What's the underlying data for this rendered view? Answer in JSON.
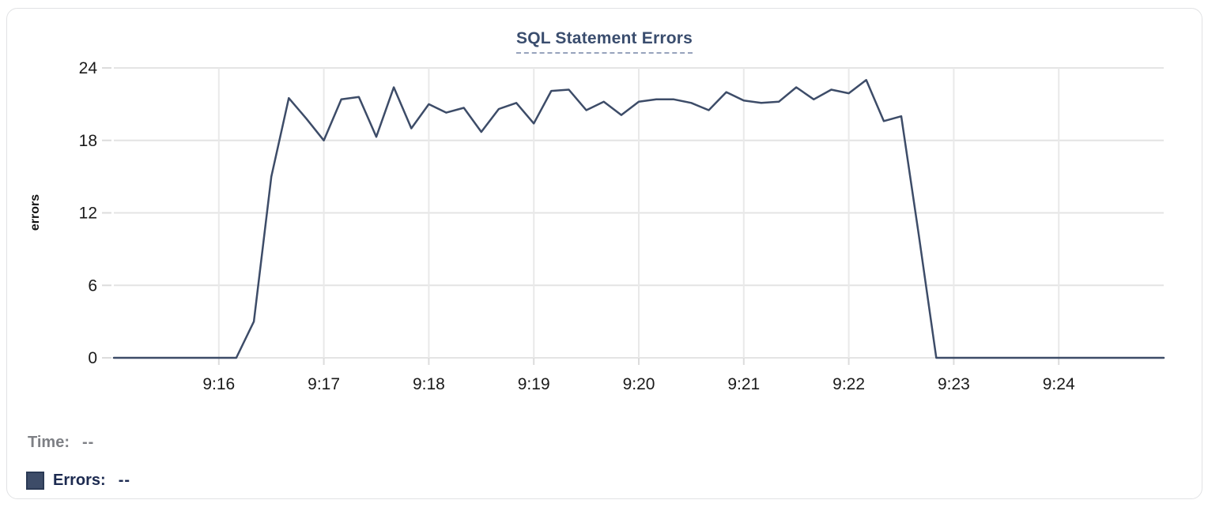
{
  "readout": {
    "time_label": "Time:",
    "time_value": "--",
    "errors_label": "Errors:",
    "errors_value": "--"
  },
  "colors": {
    "series_line": "#3d4c68",
    "swatch_fill": "#3d4c68",
    "swatch_border": "#2b3a55",
    "title_text": "#3a4d6e",
    "title_underline": "#97a3bc",
    "tick_text": "#1a1a1a",
    "grid_horizontal": "#e4e4e4",
    "grid_vertical": "#e9e9e9",
    "tick_mark": "#dcdcdc",
    "legend_muted_text": "#7e8085",
    "legend_strong_text": "#1c2a50",
    "card_border": "#e1e2e4"
  },
  "chart_data": {
    "type": "line",
    "title": "SQL Statement Errors",
    "xlabel": "",
    "ylabel": "errors",
    "ylim": [
      0,
      24
    ],
    "y_ticks": [
      0,
      6,
      12,
      18,
      24
    ],
    "x_ticks": [
      "9:16",
      "9:17",
      "9:18",
      "9:19",
      "9:20",
      "9:21",
      "9:22",
      "9:23",
      "9:24"
    ],
    "x_range": [
      "9:15:00",
      "9:25:00"
    ],
    "sample_interval_seconds": 10,
    "grid": true,
    "legend_position": "bottom-left",
    "series": [
      {
        "name": "Errors",
        "color": "#3d4c68",
        "values": [
          0,
          0,
          0,
          0,
          0,
          0,
          0,
          0,
          3,
          15,
          21.5,
          19.8,
          18,
          21.4,
          21.6,
          18.3,
          22.4,
          19,
          21,
          20.3,
          20.7,
          18.7,
          20.6,
          21.1,
          19.4,
          22.1,
          22.2,
          20.5,
          21.2,
          20.1,
          21.2,
          21.4,
          21.4,
          21.1,
          20.5,
          22,
          21.3,
          21.1,
          21.2,
          22.4,
          21.4,
          22.2,
          21.9,
          23,
          19.6,
          20,
          10.2,
          0,
          0,
          0,
          0,
          0,
          0,
          0,
          0,
          0,
          0,
          0,
          0,
          0,
          0
        ]
      }
    ]
  }
}
